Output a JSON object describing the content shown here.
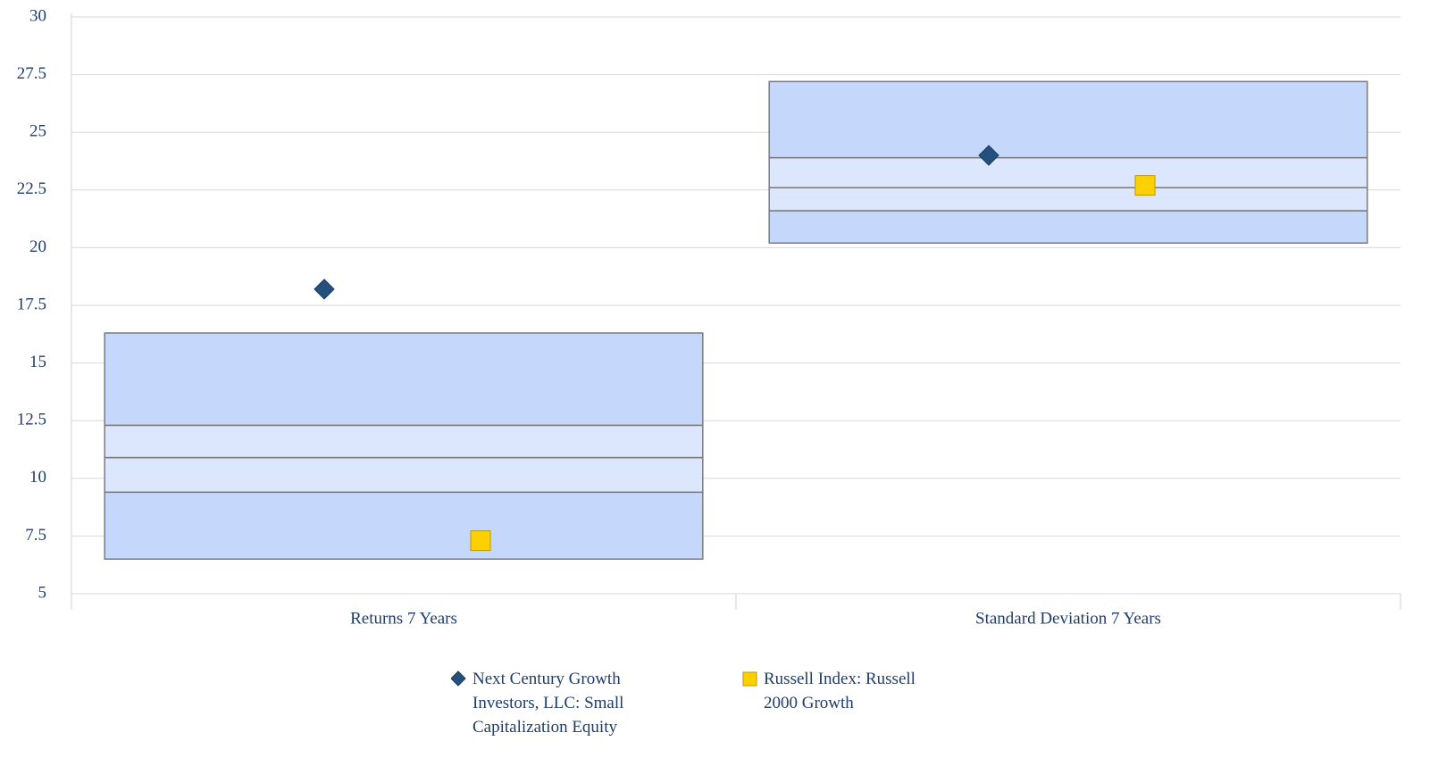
{
  "chart_data": {
    "type": "floating-box",
    "categories": [
      "Returns 7 Years",
      "Standard Deviation 7 Years"
    ],
    "boxes": {
      "low": [
        6.5,
        20.2
      ],
      "q1": [
        9.4,
        21.6
      ],
      "median": [
        10.9,
        22.6
      ],
      "q3": [
        12.3,
        23.9
      ],
      "high": [
        16.3,
        27.2
      ],
      "outer_color": "#c5d7fb",
      "inner_color": "#dce6fc",
      "edge_color": "#7a7a7a"
    },
    "series": [
      {
        "name": "Next Century Growth Investors, LLC: Small Capitalization Equity",
        "color": "#24507d",
        "marker": "diamond",
        "values": [
          18.2,
          24.0
        ]
      },
      {
        "name": "Russell Index: Russell 2000 Growth",
        "color": "#ffd000",
        "marker": "square",
        "values": [
          7.3,
          22.7
        ]
      }
    ],
    "ylim": [
      5,
      30
    ],
    "yticks": [
      5,
      7.5,
      10,
      12.5,
      15,
      17.5,
      20,
      22.5,
      25,
      27.5,
      30
    ],
    "grid": true,
    "legend": "bottom"
  }
}
